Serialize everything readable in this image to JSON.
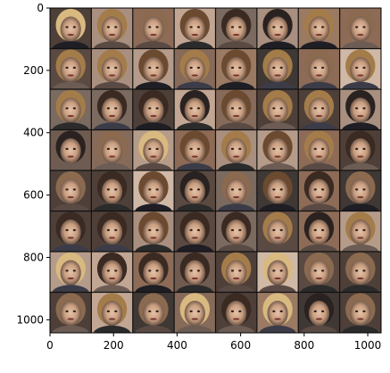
{
  "figure": {
    "grid": {
      "rows": 8,
      "cols": 8,
      "description": "64 generated face images in an 8x8 grid"
    },
    "x_ticks": [
      "0",
      "200",
      "400",
      "600",
      "800",
      "1000"
    ],
    "y_ticks": [
      "0",
      "200",
      "400",
      "600",
      "800",
      "1000"
    ],
    "x_range": [
      0,
      1042
    ],
    "y_range": [
      1042,
      0
    ],
    "colors": {
      "axis": "#000000",
      "grid_lines": "#111111",
      "background": "#ffffff",
      "tile_palette": [
        "#8d6b57",
        "#5b4a42",
        "#a98f7f",
        "#6f5b50",
        "#c2a694",
        "#4e4039",
        "#9b7a64",
        "#7a6a60",
        "#b59c8a",
        "#3f3834",
        "#d0b8a6",
        "#866a5a"
      ]
    }
  }
}
